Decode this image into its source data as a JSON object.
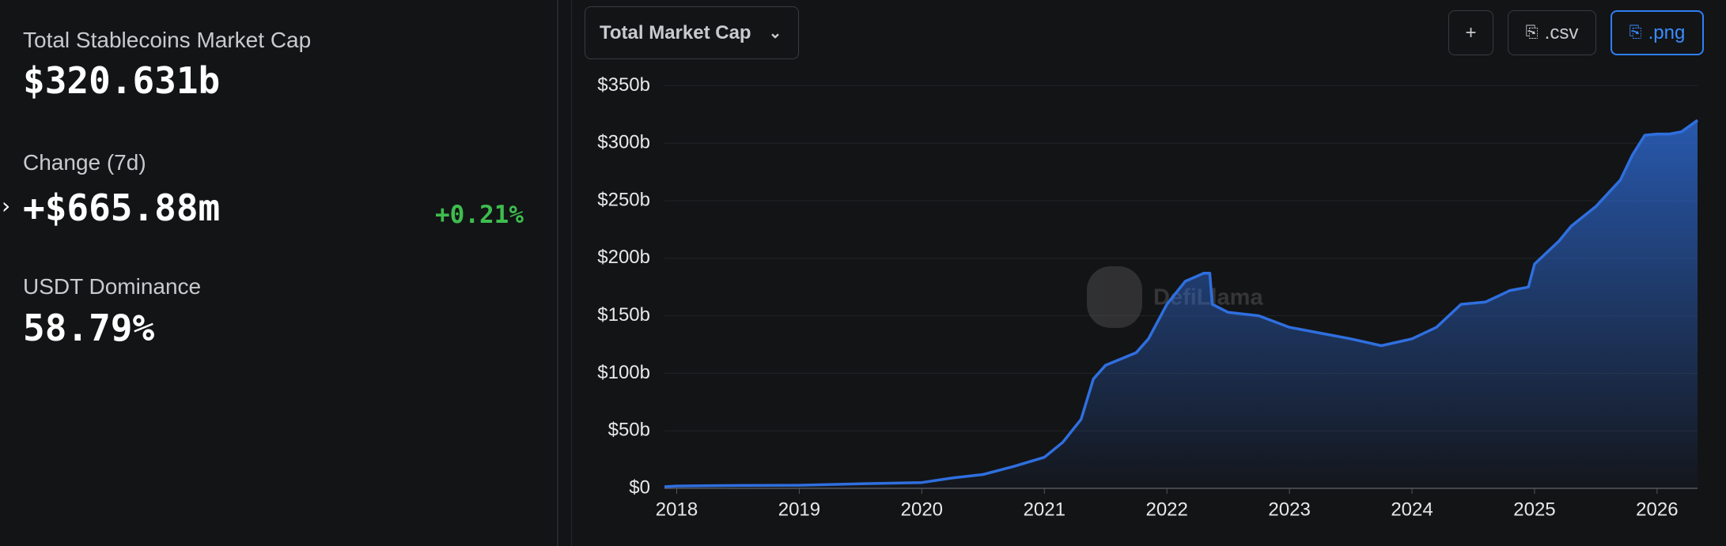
{
  "panel": {
    "market_cap_label": "Total Stablecoins Market Cap",
    "market_cap_value": "$320.631b",
    "change_label": "Change (7d)",
    "change_value": "+$665.88m",
    "change_percent": "+0.21%",
    "dominance_label": "USDT Dominance",
    "dominance_value": "58.79%"
  },
  "controls": {
    "dropdown": "Total Market Cap",
    "add": "+",
    "csv": ".csv",
    "png": ".png",
    "watermark": "DefiLlama"
  },
  "chart_data": {
    "type": "area",
    "color": "#2f6fdf",
    "grid": true,
    "x": [
      2017.9,
      2018,
      2018.5,
      2019,
      2019.5,
      2020,
      2020.25,
      2020.5,
      2020.75,
      2021,
      2021.15,
      2021.3,
      2021.4,
      2021.5,
      2021.75,
      2021.85,
      2022,
      2022.15,
      2022.3,
      2022.35,
      2022.37,
      2022.5,
      2022.75,
      2023,
      2023.25,
      2023.5,
      2023.75,
      2024,
      2024.2,
      2024.4,
      2024.6,
      2024.8,
      2024.95,
      2025,
      2025.2,
      2025.3,
      2025.5,
      2025.7,
      2025.8,
      2025.9,
      2026,
      2026.1,
      2026.2,
      2026.33
    ],
    "values": [
      1.4,
      2,
      2.5,
      2.7,
      4,
      5,
      9,
      12,
      19,
      27,
      40,
      60,
      95,
      107,
      118,
      130,
      160,
      180,
      187,
      187,
      160,
      153,
      150,
      140,
      135,
      130,
      124,
      130,
      140,
      160,
      162,
      172,
      175,
      195,
      215,
      228,
      245,
      268,
      290,
      307,
      308,
      308,
      310,
      320
    ],
    "xlim": [
      2017.9,
      2026.33
    ],
    "xticks": [
      2018,
      2019,
      2020,
      2021,
      2022,
      2023,
      2024,
      2025,
      2026
    ],
    "ylim": [
      0,
      350
    ],
    "yticks": [
      {
        "value": 0,
        "label": "$0"
      },
      {
        "value": 50,
        "label": "$50b"
      },
      {
        "value": 100,
        "label": "$100b"
      },
      {
        "value": 150,
        "label": "$150b"
      },
      {
        "value": 200,
        "label": "$200b"
      },
      {
        "value": 250,
        "label": "$250b"
      },
      {
        "value": 300,
        "label": "$300b"
      },
      {
        "value": 350,
        "label": "$350b"
      }
    ]
  }
}
